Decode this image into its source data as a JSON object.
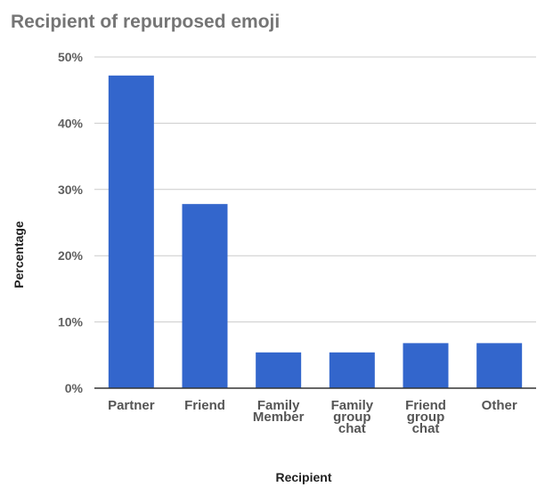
{
  "chart_data": {
    "type": "bar",
    "title": "Recipient of repurposed emoji",
    "xlabel": "Recipient",
    "ylabel": "Percentage",
    "categories": [
      "Partner",
      "Friend",
      "Family Member",
      "Family group chat",
      "Friend group chat",
      "Other"
    ],
    "category_lines": [
      [
        "Partner"
      ],
      [
        "Friend"
      ],
      [
        "Family",
        "Member"
      ],
      [
        "Family",
        "group",
        "chat"
      ],
      [
        "Friend",
        "group",
        "chat"
      ],
      [
        "Other"
      ]
    ],
    "values": [
      47.2,
      27.8,
      5.4,
      5.4,
      6.8,
      6.8
    ],
    "ylim": [
      0,
      50
    ],
    "y_ticks": [
      0,
      10,
      20,
      30,
      40,
      50
    ],
    "y_tick_labels": [
      "0%",
      "10%",
      "20%",
      "30%",
      "40%",
      "50%"
    ],
    "grid": true,
    "legend": "none",
    "bar_color": "#3366cc"
  }
}
